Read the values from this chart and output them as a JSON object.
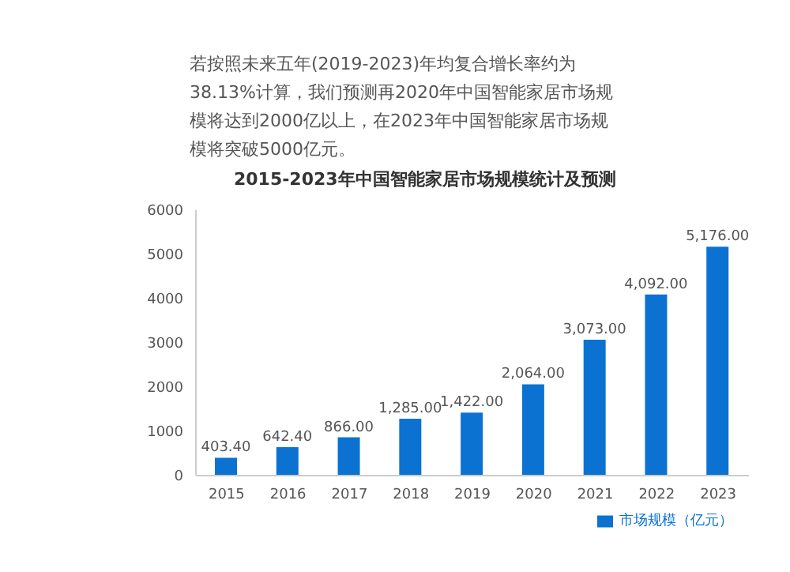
{
  "chart_data": {
    "type": "bar",
    "title": "2015-2023年中国智能家居市场规模统计及预测",
    "annotations": [
      "若按照未来五年(2019-2023)年均复合增长率约为38.13%计算，我们预测再2020年中国智能家居市场规模将达到2000亿以上，在2023年中国智能家居市场规模将突破5000亿元。"
    ],
    "categories": [
      "2015",
      "2016",
      "2017",
      "2018",
      "2019",
      "2020",
      "2021",
      "2022",
      "2023"
    ],
    "series": [
      {
        "name": "市场规模（亿元）",
        "color": "#0b72d2",
        "values": [
          403.4,
          642.4,
          866,
          1285,
          1422,
          2064,
          3073,
          4092,
          5176
        ]
      }
    ],
    "ylim": [
      0,
      6000
    ],
    "yticks": [
      0,
      1000,
      2000,
      3000,
      4000,
      5000,
      6000
    ],
    "value_labels": [
      "403.40",
      "642.40",
      "866.00",
      "1,285.00",
      "1,422.00",
      "2,064.00",
      "3,073.00",
      "4,092.00",
      "5,176.00"
    ],
    "grid": false,
    "legend": "bottom"
  }
}
